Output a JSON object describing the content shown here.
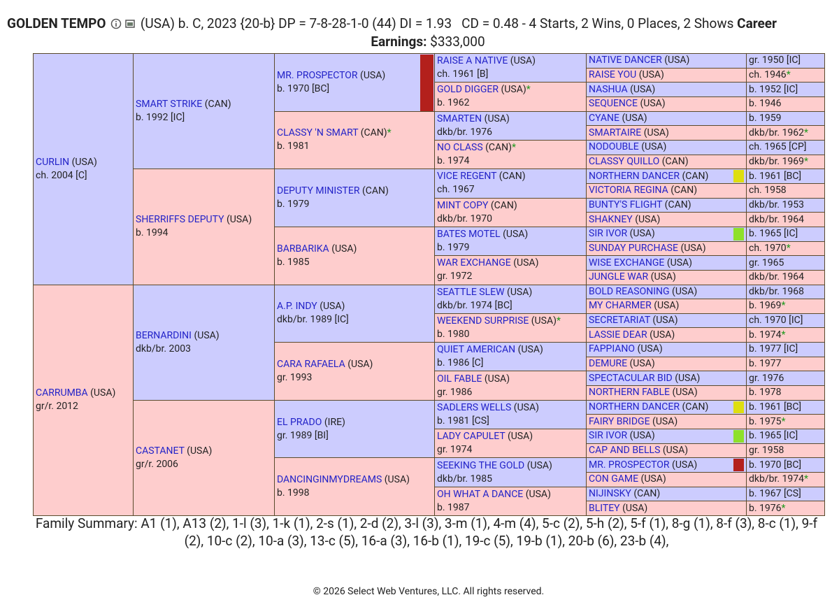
{
  "header": {
    "name": "GOLDEN TEMPO",
    "details": "(USA) b. C, 2023 {20-b} DP = 7-8-28-1-0 (44) DI = 1.93   CD = 0.48 - 4 Starts, 2 Wins, 0 Places, 2 Shows",
    "career_label": "Career",
    "earnings_label": "Earnings:",
    "earnings": "$333,000"
  },
  "pedigree": {
    "generations": [
      [
        {
          "name": "CURLIN",
          "country": "(USA)",
          "info": "ch. 2004 [C]"
        },
        {
          "name": "CARRUMBA",
          "country": "(USA)",
          "info": "gr/r. 2012"
        }
      ],
      [
        {
          "name": "SMART STRIKE",
          "country": "(CAN)",
          "info": "b. 1992 [IC]"
        },
        {
          "name": "SHERRIFFS DEPUTY",
          "country": "(USA)",
          "info": "b. 1994"
        },
        {
          "name": "BERNARDINI",
          "country": "(USA)",
          "info": "dkb/br. 2003"
        },
        {
          "name": "CASTANET",
          "country": "(USA)",
          "info": "gr/r. 2006"
        }
      ],
      [
        {
          "name": "MR. PROSPECTOR",
          "country": "(USA)",
          "info": "b. 1970 [BC]",
          "marker": "#b3201c"
        },
        {
          "name": "CLASSY 'N SMART",
          "country": "(CAN)",
          "star": "*",
          "info": "b. 1981"
        },
        {
          "name": "DEPUTY MINISTER",
          "country": "(CAN)",
          "info": "b. 1979"
        },
        {
          "name": "BARBARIKA",
          "country": "(USA)",
          "info": "b. 1985"
        },
        {
          "name": "A.P. INDY",
          "country": "(USA)",
          "info": "dkb/br. 1989 [IC]"
        },
        {
          "name": "CARA RAFAELA",
          "country": "(USA)",
          "info": "gr. 1993"
        },
        {
          "name": "EL PRADO",
          "country": "(IRE)",
          "info": "gr. 1989 [BI]"
        },
        {
          "name": "DANCINGINMYDREAMS",
          "country": "(USA)",
          "info": "b. 1998"
        }
      ],
      [
        {
          "name": "RAISE A NATIVE",
          "country": "(USA)",
          "info": "ch. 1961 [B]"
        },
        {
          "name": "GOLD DIGGER",
          "country": "(USA)",
          "star": "*",
          "info": "b. 1962"
        },
        {
          "name": "SMARTEN",
          "country": "(USA)",
          "info": "dkb/br. 1976"
        },
        {
          "name": "NO CLASS",
          "country": "(CAN)",
          "star": "*",
          "info": "b. 1974"
        },
        {
          "name": "VICE REGENT",
          "country": "(CAN)",
          "info": "ch. 1967"
        },
        {
          "name": "MINT COPY",
          "country": "(CAN)",
          "info": "dkb/br. 1970"
        },
        {
          "name": "BATES MOTEL",
          "country": "(USA)",
          "info": "b. 1979"
        },
        {
          "name": "WAR EXCHANGE",
          "country": "(USA)",
          "info": "gr. 1972"
        },
        {
          "name": "SEATTLE SLEW",
          "country": "(USA)",
          "info": "dkb/br. 1974 [BC]"
        },
        {
          "name": "WEEKEND SURPRISE",
          "country": "(USA)",
          "star": "*",
          "info": "b. 1980"
        },
        {
          "name": "QUIET AMERICAN",
          "country": "(USA)",
          "info": "b. 1986 [C]"
        },
        {
          "name": "OIL FABLE",
          "country": "(USA)",
          "info": "gr. 1986"
        },
        {
          "name": "SADLERS WELLS",
          "country": "(USA)",
          "info": "b. 1981 [CS]"
        },
        {
          "name": "LADY CAPULET",
          "country": "(USA)",
          "info": "gr. 1974"
        },
        {
          "name": "SEEKING THE GOLD",
          "country": "(USA)",
          "info": "dkb/br. 1985"
        },
        {
          "name": "OH WHAT A DANCE",
          "country": "(USA)",
          "info": "b. 1987"
        }
      ],
      [
        {
          "name": "NATIVE DANCER",
          "country": "(USA)",
          "info": "gr. 1950 [IC]"
        },
        {
          "name": "RAISE YOU",
          "country": "(USA)",
          "info": "ch. 1946",
          "star": "*"
        },
        {
          "name": "NASHUA",
          "country": "(USA)",
          "info": "b. 1952 [IC]"
        },
        {
          "name": "SEQUENCE",
          "country": "(USA)",
          "info": "b. 1946"
        },
        {
          "name": "CYANE",
          "country": "(USA)",
          "info": "b. 1959"
        },
        {
          "name": "SMARTAIRE",
          "country": "(USA)",
          "info": "dkb/br. 1962",
          "star": "*"
        },
        {
          "name": "NODOUBLE",
          "country": "(USA)",
          "info": "ch. 1965 [CP]"
        },
        {
          "name": "CLASSY QUILLO",
          "country": "(CAN)",
          "info": "dkb/br. 1969",
          "star": "*"
        },
        {
          "name": "NORTHERN DANCER",
          "country": "(CAN)",
          "info": "b. 1961 [BC]",
          "marker": "#dede10"
        },
        {
          "name": "VICTORIA REGINA",
          "country": "(CAN)",
          "info": "ch. 1958"
        },
        {
          "name": "BUNTY'S FLIGHT",
          "country": "(CAN)",
          "info": "dkb/br. 1953"
        },
        {
          "name": "SHAKNEY",
          "country": "(USA)",
          "info": "dkb/br. 1964"
        },
        {
          "name": "SIR IVOR",
          "country": "(USA)",
          "info": "b. 1965 [IC]",
          "marker": "#8ee02a"
        },
        {
          "name": "SUNDAY PURCHASE",
          "country": "(USA)",
          "info": "ch. 1970",
          "star": "*"
        },
        {
          "name": "WISE EXCHANGE",
          "country": "(USA)",
          "info": "gr. 1965"
        },
        {
          "name": "JUNGLE WAR",
          "country": "(USA)",
          "info": "dkb/br. 1964"
        },
        {
          "name": "BOLD REASONING",
          "country": "(USA)",
          "info": "dkb/br. 1968"
        },
        {
          "name": "MY CHARMER",
          "country": "(USA)",
          "info": "b. 1969",
          "star": "*"
        },
        {
          "name": "SECRETARIAT",
          "country": "(USA)",
          "info": "ch. 1970 [IC]"
        },
        {
          "name": "LASSIE DEAR",
          "country": "(USA)",
          "info": "b. 1974",
          "star": "*"
        },
        {
          "name": "FAPPIANO",
          "country": "(USA)",
          "info": "b. 1977 [IC]"
        },
        {
          "name": "DEMURE",
          "country": "(USA)",
          "info": "b. 1977"
        },
        {
          "name": "SPECTACULAR BID",
          "country": "(USA)",
          "info": "gr. 1976"
        },
        {
          "name": "NORTHERN FABLE",
          "country": "(USA)",
          "info": "b. 1978"
        },
        {
          "name": "NORTHERN DANCER",
          "country": "(CAN)",
          "info": "b. 1961 [BC]",
          "marker": "#dede10"
        },
        {
          "name": "FAIRY BRIDGE",
          "country": "(USA)",
          "info": "b. 1975",
          "star": "*"
        },
        {
          "name": "SIR IVOR",
          "country": "(USA)",
          "info": "b. 1965 [IC]",
          "marker": "#8ee02a"
        },
        {
          "name": "CAP AND BELLS",
          "country": "(USA)",
          "info": "gr. 1958"
        },
        {
          "name": "MR. PROSPECTOR",
          "country": "(USA)",
          "info": "b. 1970 [BC]",
          "marker": "#b3201c"
        },
        {
          "name": "CON GAME",
          "country": "(USA)",
          "info": "dkb/br. 1974",
          "star": "*"
        },
        {
          "name": "NIJINSKY",
          "country": "(CAN)",
          "info": "b. 1967 [CS]"
        },
        {
          "name": "BLITEY",
          "country": "(USA)",
          "info": "b. 1976",
          "star": "*"
        }
      ]
    ]
  },
  "family_summary": {
    "label": "Family Summary:",
    "text": "A1 (1), A13 (2), 1-l (3), 1-k (1), 2-s (1), 2-d (2), 3-l (3), 3-m (1), 4-m (4), 5-c (2), 5-h (2), 5-f (1), 8-g (1), 8-f (3), 8-c (1), 9-f (2), 10-c (2), 10-a (3), 13-c (5), 16-a (3), 16-b (1), 19-c (5), 19-b (1), 20-b (6), 23-b (4),"
  },
  "footer": "© 2026 Select Web Ventures, LLC. All rights reserved."
}
